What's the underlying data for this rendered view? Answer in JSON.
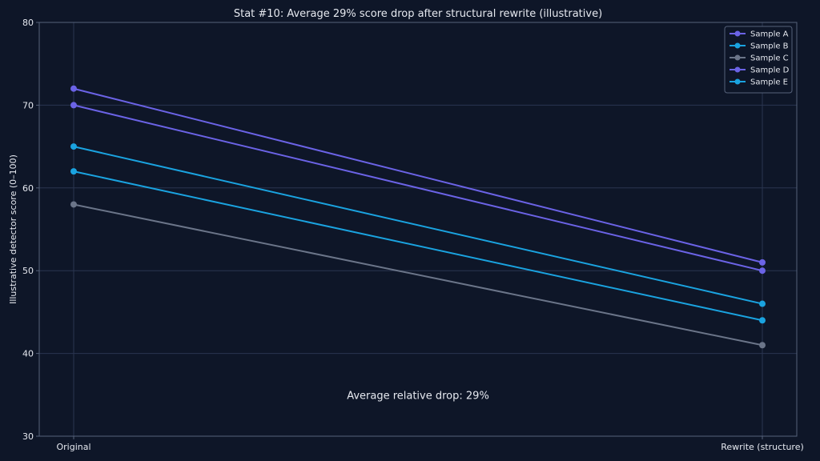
{
  "chart_data": {
    "type": "line",
    "title": "Stat #10: Average 29% score drop after structural rewrite (illustrative)",
    "xlabel": "",
    "ylabel": "Illustrative detector score (0–100)",
    "categories": [
      "Original",
      "Rewrite (structure)"
    ],
    "ylim": [
      30,
      80
    ],
    "yticks": [
      30,
      40,
      50,
      60,
      70,
      80
    ],
    "grid": true,
    "legend_position": "top-right",
    "series": [
      {
        "name": "Sample A",
        "values": [
          72,
          51
        ],
        "color": "#6b63e6"
      },
      {
        "name": "Sample B",
        "values": [
          62,
          44
        ],
        "color": "#1aa3e0"
      },
      {
        "name": "Sample C",
        "values": [
          58,
          41
        ],
        "color": "#6b7589"
      },
      {
        "name": "Sample D",
        "values": [
          70,
          50
        ],
        "color": "#6b63e6"
      },
      {
        "name": "Sample E",
        "values": [
          65,
          46
        ],
        "color": "#1aa3e0"
      }
    ],
    "annotations": [
      {
        "text": "Average relative drop: 29%",
        "x": 0.5,
        "y": 34.5
      }
    ]
  }
}
